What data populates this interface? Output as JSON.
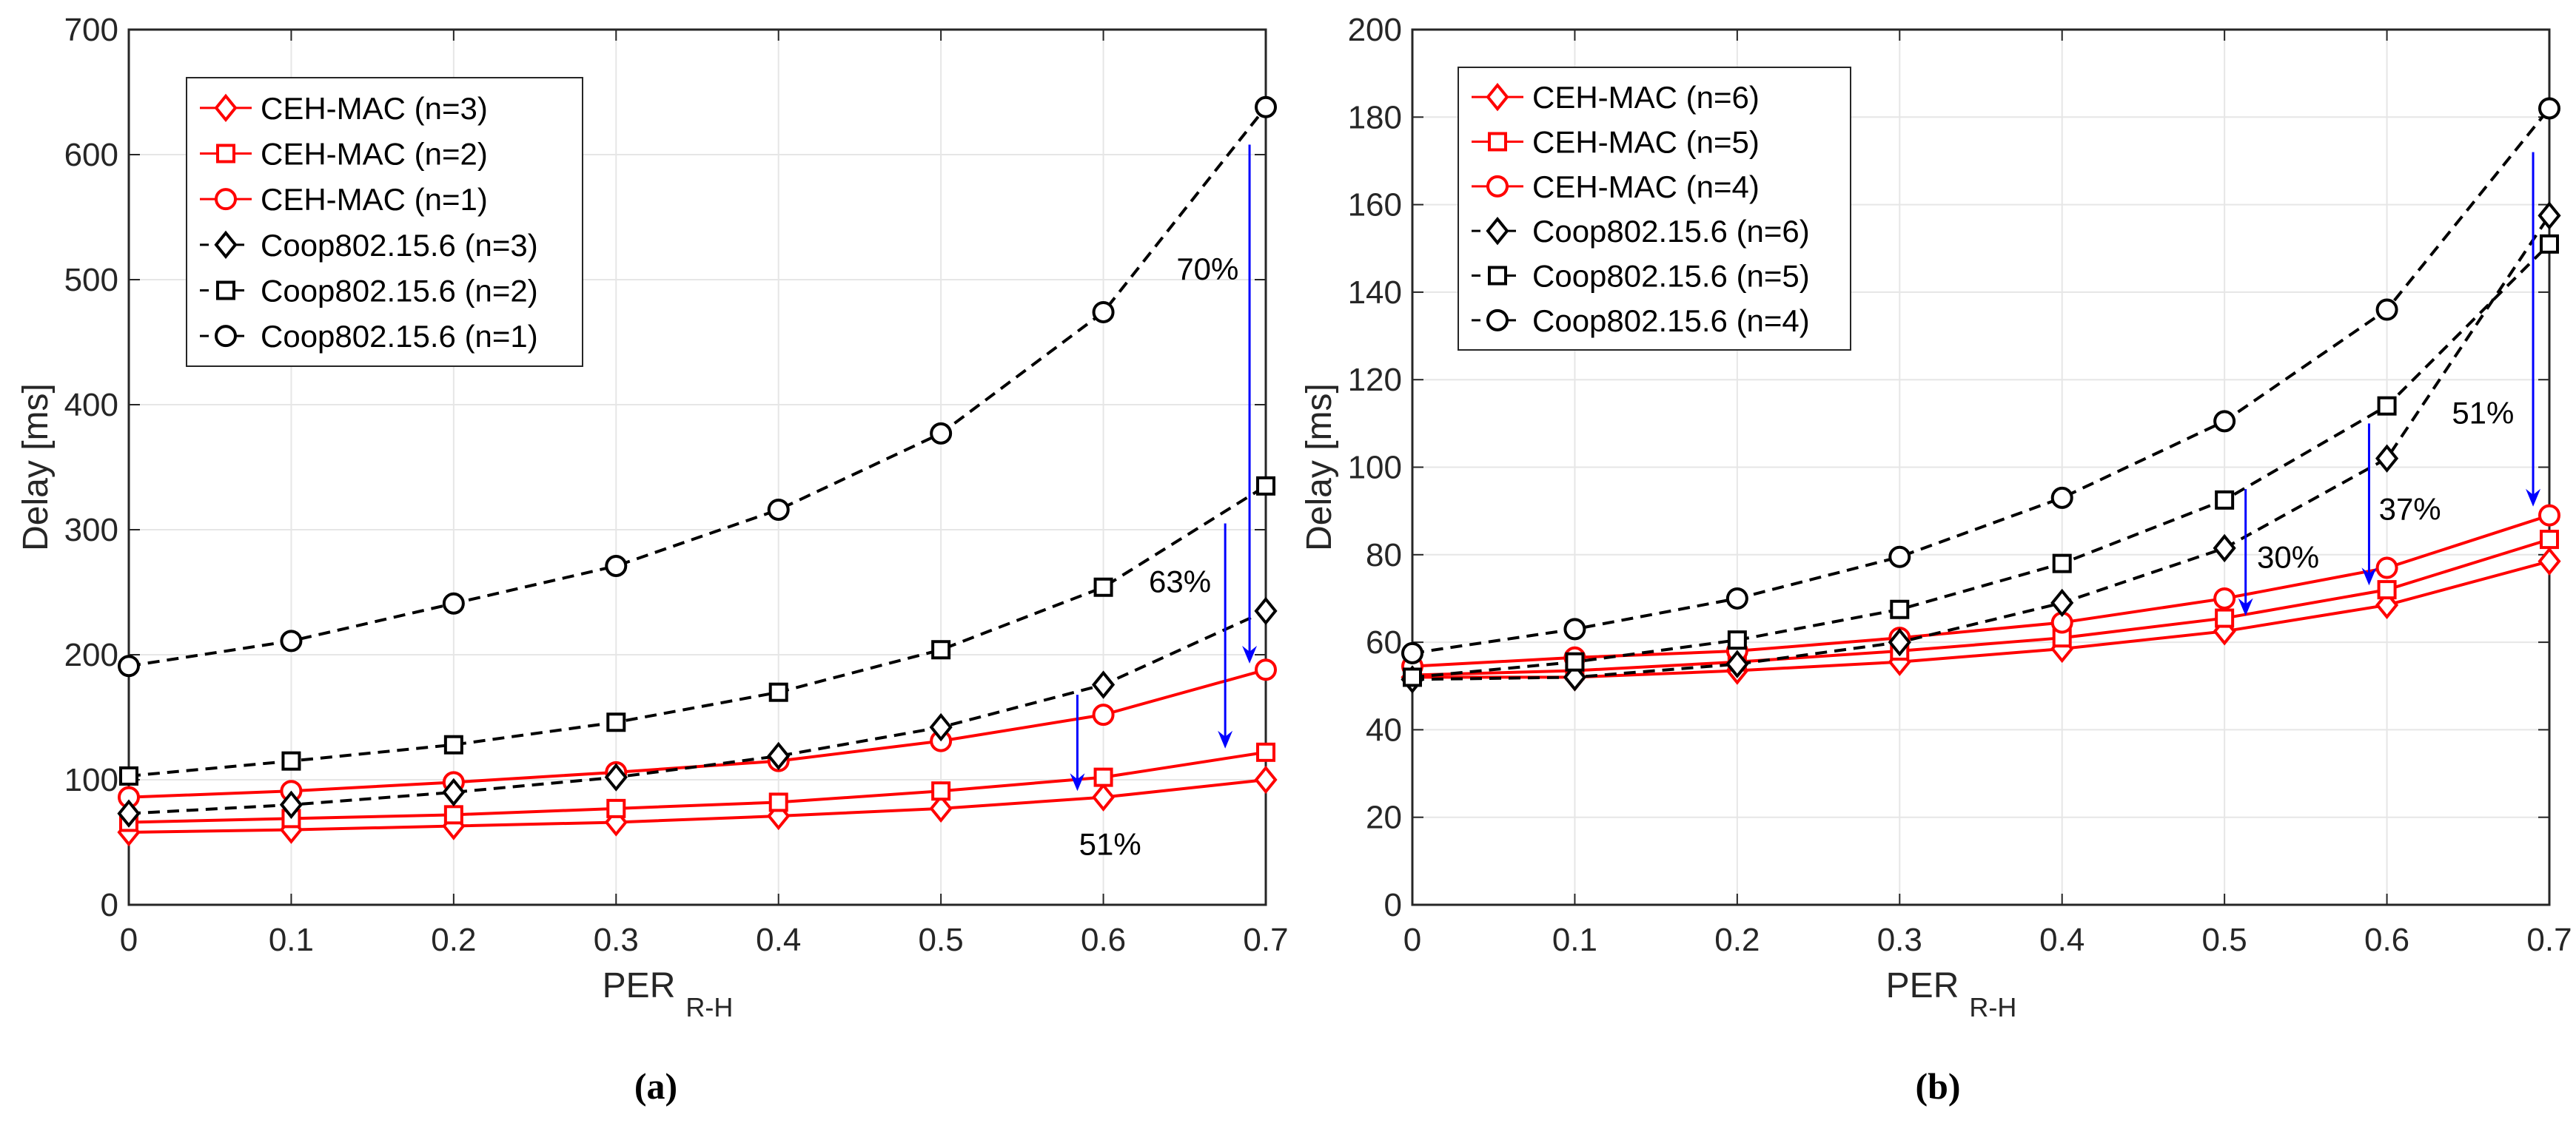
{
  "chart_data": [
    {
      "type": "line",
      "caption": "(a)",
      "xlabel": "PER",
      "xlabel_sub": "R-H",
      "ylabel": "Delay [ms]",
      "xlim": [
        0,
        0.7
      ],
      "ylim": [
        0,
        700
      ],
      "xticks": [
        "0",
        "0.1",
        "0.2",
        "0.3",
        "0.4",
        "0.5",
        "0.6",
        "0.7"
      ],
      "yticks": [
        "0",
        "100",
        "200",
        "300",
        "400",
        "500",
        "600",
        "700"
      ],
      "grid": true,
      "legend_position": "top-left",
      "x": [
        0,
        0.1,
        0.2,
        0.3,
        0.4,
        0.5,
        0.6,
        0.7
      ],
      "series": [
        {
          "name": "CEH-MAC (n=3)",
          "color": "#ff0000",
          "style": "solid",
          "marker": "diamond",
          "values": [
            58,
            60,
            63,
            66,
            71,
            77,
            86,
            100
          ]
        },
        {
          "name": "CEH-MAC (n=2)",
          "color": "#ff0000",
          "style": "solid",
          "marker": "square",
          "values": [
            66,
            69,
            72,
            77,
            82,
            91,
            102,
            122
          ]
        },
        {
          "name": "CEH-MAC (n=1)",
          "color": "#ff0000",
          "style": "solid",
          "marker": "circle",
          "values": [
            86,
            91,
            98,
            106,
            115,
            131,
            152,
            188
          ]
        },
        {
          "name": "Coop802.15.6 (n=3)",
          "color": "#000000",
          "style": "dashed",
          "marker": "diamond",
          "values": [
            73,
            80,
            90,
            102,
            119,
            142,
            176,
            235
          ]
        },
        {
          "name": "Coop802.15.6 (n=2)",
          "color": "#000000",
          "style": "dashed",
          "marker": "square",
          "values": [
            103,
            115,
            128,
            146,
            170,
            204,
            254,
            335
          ]
        },
        {
          "name": "Coop802.15.6 (n=1)",
          "color": "#000000",
          "style": "dashed",
          "marker": "circle",
          "values": [
            191,
            211,
            241,
            271,
            316,
            377,
            474,
            638
          ]
        }
      ],
      "annotations": [
        {
          "text": "70%",
          "text_x": 0.645,
          "text_y": 500,
          "arrow_x": 0.69,
          "arrow_from": 608,
          "arrow_to": 193
        },
        {
          "text": "63%",
          "text_x": 0.628,
          "text_y": 250,
          "arrow_x": 0.675,
          "arrow_from": 305,
          "arrow_to": 125
        },
        {
          "text": "51%",
          "text_x": 0.585,
          "text_y": 40,
          "arrow_x": 0.584,
          "arrow_from": 168,
          "arrow_to": 91
        }
      ],
      "arrow_color": "#0000ff"
    },
    {
      "type": "line",
      "caption": "(b)",
      "xlabel": "PER",
      "xlabel_sub": "R-H",
      "ylabel": "Delay [ms]",
      "xlim": [
        0,
        0.7
      ],
      "ylim": [
        0,
        200
      ],
      "xticks": [
        "0",
        "0.1",
        "0.2",
        "0.3",
        "0.4",
        "0.5",
        "0.6",
        "0.7"
      ],
      "yticks": [
        "0",
        "20",
        "40",
        "60",
        "80",
        "100",
        "120",
        "140",
        "160",
        "180",
        "200"
      ],
      "grid": true,
      "legend_position": "top-left",
      "x": [
        0,
        0.1,
        0.2,
        0.3,
        0.4,
        0.5,
        0.6,
        0.7
      ],
      "series": [
        {
          "name": "CEH-MAC (n=6)",
          "color": "#ff0000",
          "style": "solid",
          "marker": "diamond",
          "values": [
            52,
            52,
            53.5,
            55.5,
            58.5,
            62.5,
            68.5,
            78.5
          ]
        },
        {
          "name": "CEH-MAC (n=5)",
          "color": "#ff0000",
          "style": "solid",
          "marker": "square",
          "values": [
            52.5,
            53.5,
            55.5,
            58,
            61,
            65.5,
            72,
            83.5
          ]
        },
        {
          "name": "CEH-MAC (n=4)",
          "color": "#ff0000",
          "style": "solid",
          "marker": "circle",
          "values": [
            54.5,
            56.5,
            58,
            61,
            64.5,
            70,
            77,
            89
          ]
        },
        {
          "name": "Coop802.15.6 (n=6)",
          "color": "#000000",
          "style": "dashed",
          "marker": "diamond",
          "values": [
            51.5,
            52,
            55,
            60,
            69,
            81.5,
            102,
            157.5
          ]
        },
        {
          "name": "Coop802.15.6 (n=5)",
          "color": "#000000",
          "style": "dashed",
          "marker": "square",
          "values": [
            52,
            55.5,
            60.5,
            67.5,
            78,
            92.5,
            114,
            151
          ]
        },
        {
          "name": "Coop802.15.6 (n=4)",
          "color": "#000000",
          "style": "dashed",
          "marker": "circle",
          "values": [
            57.5,
            63,
            70,
            79.5,
            93,
            110.5,
            136,
            182
          ]
        }
      ],
      "annotations": [
        {
          "text": "30%",
          "text_x": 0.52,
          "text_y": 77,
          "arrow_x": 0.513,
          "arrow_from": 95,
          "arrow_to": 66
        },
        {
          "text": "37%",
          "text_x": 0.595,
          "text_y": 88,
          "arrow_x": 0.589,
          "arrow_from": 110,
          "arrow_to": 73
        },
        {
          "text": "51%",
          "text_x": 0.64,
          "text_y": 110,
          "arrow_x": 0.69,
          "arrow_from": 172,
          "arrow_to": 91
        }
      ],
      "arrow_color": "#0000ff"
    }
  ]
}
